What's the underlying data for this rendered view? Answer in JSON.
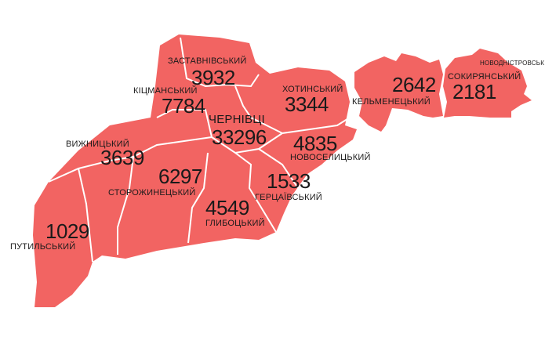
{
  "colors": {
    "region_fill": "#f26462",
    "border": "#ffffff",
    "text": "#1a1a1a"
  },
  "districts": [
    {
      "name": "ЗАСТАВНІВСЬКИЙ",
      "value": "3932"
    },
    {
      "name": "КІЦМАНСЬКИЙ",
      "value": "7784"
    },
    {
      "name": "ЧЕРНІВЦІ",
      "value": "33296"
    },
    {
      "name": "ХОТИНСЬКИЙ",
      "value": "3344"
    },
    {
      "name": "КЕЛЬМЕНЕЦЬКИЙ",
      "value": "2642"
    },
    {
      "name": "СОКИРЯНСЬКИЙ",
      "value": "2181"
    },
    {
      "name": "НОВОДНІСТРОВСЬК",
      "value": ""
    },
    {
      "name": "ВИЖНИЦЬКИЙ",
      "value": "3639"
    },
    {
      "name": "НОВОСЕЛИЦЬКИЙ",
      "value": "4835"
    },
    {
      "name": "СТОРОЖИНЕЦЬКИЙ",
      "value": "6297"
    },
    {
      "name": "ГЕРЦАЇВСЬКИЙ",
      "value": "1533"
    },
    {
      "name": "ГЛИБОЦЬКИЙ",
      "value": "4549"
    },
    {
      "name": "ПУТИЛЬСЬКИЙ",
      "value": "1029"
    }
  ]
}
